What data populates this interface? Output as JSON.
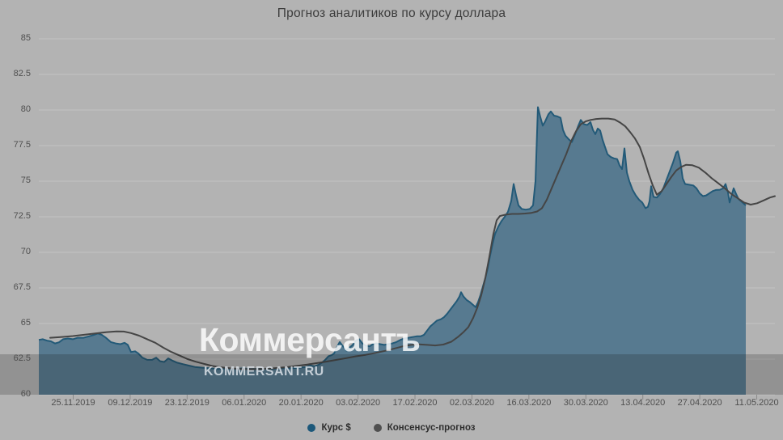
{
  "chart": {
    "title": "Прогноз аналитиков по курсу доллара"
  },
  "watermark": {
    "logo": "Коммерсантъ",
    "site": "KOMMERSANT.RU"
  },
  "colors": {
    "background": "#b3b3b3",
    "gridline": "#c3c3c3",
    "tick": "#8a8a8a",
    "axis_label": "#4f4f4f",
    "area_fill": "#54788e",
    "area_line": "#235a78",
    "consensus_line": "#454545",
    "watermark_band": "rgba(25,25,25,0.21)"
  },
  "chart_data": {
    "type": "area",
    "title": "Прогноз аналитиков по курсу доллара",
    "ylabel": "",
    "xlabel": "",
    "ylim": [
      60,
      85
    ],
    "y_ticks": [
      85,
      82.5,
      80,
      77.5,
      75,
      72.5,
      70,
      67.5,
      65,
      62.5,
      60
    ],
    "x_tick_labels": [
      "25.11.2019",
      "09.12.2019",
      "23.12.2019",
      "06.01.2020",
      "20.01.2020",
      "03.02.2020",
      "17.02.2020",
      "02.03.2020",
      "16.03.2020",
      "30.03.2020",
      "13.04.2020",
      "27.04.2020",
      "11.05.2020"
    ],
    "grid": "horizontal",
    "legend_position": "bottom",
    "x_unit": "image_px (ticks are dates two weeks apart)",
    "series": [
      {
        "name": "Курс $",
        "type": "area",
        "fill": "#54788e",
        "line": "#235a78",
        "legend_color": "#1c587a",
        "points": [
          [
            48,
            63.85
          ],
          [
            53,
            63.9
          ],
          [
            58,
            63.8
          ],
          [
            63,
            63.75
          ],
          [
            68,
            63.6
          ],
          [
            73,
            63.68
          ],
          [
            78,
            63.9
          ],
          [
            84,
            63.95
          ],
          [
            90,
            63.9
          ],
          [
            96,
            64.0
          ],
          [
            103,
            64.0
          ],
          [
            110,
            64.1
          ],
          [
            116,
            64.2
          ],
          [
            121,
            64.3
          ],
          [
            126,
            64.2
          ],
          [
            131,
            64.0
          ],
          [
            137,
            63.7
          ],
          [
            143,
            63.6
          ],
          [
            149,
            63.55
          ],
          [
            154,
            63.65
          ],
          [
            158,
            63.5
          ],
          [
            162,
            63.0
          ],
          [
            167,
            63.05
          ],
          [
            171,
            62.9
          ],
          [
            176,
            62.6
          ],
          [
            182,
            62.45
          ],
          [
            188,
            62.45
          ],
          [
            193,
            62.6
          ],
          [
            198,
            62.35
          ],
          [
            203,
            62.3
          ],
          [
            208,
            62.55
          ],
          [
            213,
            62.4
          ],
          [
            219,
            62.25
          ],
          [
            226,
            62.15
          ],
          [
            233,
            62.05
          ],
          [
            241,
            61.95
          ],
          [
            250,
            61.9
          ],
          [
            260,
            61.85
          ],
          [
            270,
            61.8
          ],
          [
            280,
            61.85
          ],
          [
            290,
            61.8
          ],
          [
            300,
            61.85
          ],
          [
            310,
            61.8
          ],
          [
            320,
            61.82
          ],
          [
            330,
            61.8
          ],
          [
            340,
            61.83
          ],
          [
            350,
            61.87
          ],
          [
            360,
            61.85
          ],
          [
            370,
            61.9
          ],
          [
            378,
            61.95
          ],
          [
            384,
            62.05
          ],
          [
            389,
            62.0
          ],
          [
            394,
            62.1
          ],
          [
            398,
            62.25
          ],
          [
            402,
            62.45
          ],
          [
            406,
            62.7
          ],
          [
            410,
            62.78
          ],
          [
            413,
            62.9
          ],
          [
            417,
            63.4
          ],
          [
            420,
            63.7
          ],
          [
            424,
            63.4
          ],
          [
            428,
            63.1
          ],
          [
            432,
            63.3
          ],
          [
            436,
            63.5
          ],
          [
            440,
            63.8
          ],
          [
            444,
            63.9
          ],
          [
            448,
            63.6
          ],
          [
            452,
            63.45
          ],
          [
            457,
            63.4
          ],
          [
            461,
            63.55
          ],
          [
            465,
            63.6
          ],
          [
            470,
            63.55
          ],
          [
            475,
            63.5
          ],
          [
            480,
            63.55
          ],
          [
            485,
            63.6
          ],
          [
            490,
            63.7
          ],
          [
            495,
            63.85
          ],
          [
            500,
            63.95
          ],
          [
            505,
            64.0
          ],
          [
            510,
            64.05
          ],
          [
            515,
            64.1
          ],
          [
            520,
            64.1
          ],
          [
            524,
            64.2
          ],
          [
            528,
            64.5
          ],
          [
            532,
            64.8
          ],
          [
            536,
            65.0
          ],
          [
            540,
            65.2
          ],
          [
            545,
            65.3
          ],
          [
            549,
            65.45
          ],
          [
            553,
            65.7
          ],
          [
            557,
            66.0
          ],
          [
            561,
            66.3
          ],
          [
            565,
            66.6
          ],
          [
            568,
            66.9
          ],
          [
            570,
            67.2
          ],
          [
            573,
            66.9
          ],
          [
            577,
            66.65
          ],
          [
            581,
            66.5
          ],
          [
            585,
            66.3
          ],
          [
            588,
            66.15
          ],
          [
            591,
            66.5
          ],
          [
            594,
            67.0
          ],
          [
            597,
            67.6
          ],
          [
            600,
            68.2
          ],
          [
            603,
            68.9
          ],
          [
            606,
            69.8
          ],
          [
            609,
            70.6
          ],
          [
            612,
            71.3
          ],
          [
            616,
            71.8
          ],
          [
            620,
            72.2
          ],
          [
            624,
            72.5
          ],
          [
            628,
            72.85
          ],
          [
            632,
            73.6
          ],
          [
            635,
            74.8
          ],
          [
            638,
            74.0
          ],
          [
            641,
            73.3
          ],
          [
            645,
            73.05
          ],
          [
            650,
            73.0
          ],
          [
            655,
            73.05
          ],
          [
            659,
            73.3
          ],
          [
            662,
            75.0
          ],
          [
            665,
            80.2
          ],
          [
            668,
            79.5
          ],
          [
            671,
            78.9
          ],
          [
            674,
            79.2
          ],
          [
            678,
            79.7
          ],
          [
            681,
            79.9
          ],
          [
            685,
            79.6
          ],
          [
            689,
            79.55
          ],
          [
            693,
            79.45
          ],
          [
            696,
            78.6
          ],
          [
            699,
            78.2
          ],
          [
            703,
            77.95
          ],
          [
            707,
            77.75
          ],
          [
            711,
            78.3
          ],
          [
            715,
            78.9
          ],
          [
            718,
            79.3
          ],
          [
            722,
            79.0
          ],
          [
            726,
            78.95
          ],
          [
            730,
            79.15
          ],
          [
            733,
            78.6
          ],
          [
            736,
            78.3
          ],
          [
            739,
            78.7
          ],
          [
            742,
            78.55
          ],
          [
            745,
            77.9
          ],
          [
            748,
            77.4
          ],
          [
            751,
            76.9
          ],
          [
            755,
            76.7
          ],
          [
            759,
            76.6
          ],
          [
            763,
            76.55
          ],
          [
            766,
            76.1
          ],
          [
            769,
            75.85
          ],
          [
            772,
            77.3
          ],
          [
            775,
            75.6
          ],
          [
            778,
            75.0
          ],
          [
            782,
            74.4
          ],
          [
            786,
            74.0
          ],
          [
            790,
            73.7
          ],
          [
            794,
            73.5
          ],
          [
            798,
            73.1
          ],
          [
            801,
            73.2
          ],
          [
            803,
            73.6
          ],
          [
            805,
            74.65
          ],
          [
            808,
            73.9
          ],
          [
            812,
            73.85
          ],
          [
            816,
            74.1
          ],
          [
            820,
            74.5
          ],
          [
            824,
            75.1
          ],
          [
            828,
            75.7
          ],
          [
            832,
            76.3
          ],
          [
            836,
            77.0
          ],
          [
            838,
            77.1
          ],
          [
            841,
            76.4
          ],
          [
            844,
            75.2
          ],
          [
            847,
            74.8
          ],
          [
            852,
            74.75
          ],
          [
            857,
            74.7
          ],
          [
            861,
            74.5
          ],
          [
            865,
            74.15
          ],
          [
            869,
            73.95
          ],
          [
            873,
            74.0
          ],
          [
            877,
            74.15
          ],
          [
            881,
            74.3
          ],
          [
            885,
            74.38
          ],
          [
            890,
            74.4
          ],
          [
            894,
            74.5
          ],
          [
            897,
            74.8
          ],
          [
            900,
            74.2
          ],
          [
            902,
            73.5
          ],
          [
            905,
            74.1
          ],
          [
            907,
            74.5
          ],
          [
            910,
            74.1
          ],
          [
            913,
            73.75
          ],
          [
            916,
            73.6
          ],
          [
            919,
            73.45
          ],
          [
            922,
            73.3
          ]
        ]
      },
      {
        "name": "Консенсус-прогноз",
        "type": "line",
        "line": "#454545",
        "legend_color": "#4f4f4f",
        "points": [
          [
            62,
            64.0
          ],
          [
            75,
            64.05
          ],
          [
            90,
            64.12
          ],
          [
            105,
            64.22
          ],
          [
            120,
            64.32
          ],
          [
            132,
            64.4
          ],
          [
            144,
            64.45
          ],
          [
            153,
            64.44
          ],
          [
            162,
            64.33
          ],
          [
            172,
            64.15
          ],
          [
            182,
            63.9
          ],
          [
            192,
            63.65
          ],
          [
            202,
            63.3
          ],
          [
            212,
            63.0
          ],
          [
            222,
            62.75
          ],
          [
            232,
            62.5
          ],
          [
            242,
            62.32
          ],
          [
            252,
            62.17
          ],
          [
            262,
            62.03
          ],
          [
            272,
            61.93
          ],
          [
            284,
            61.86
          ],
          [
            296,
            61.81
          ],
          [
            308,
            61.79
          ],
          [
            320,
            61.8
          ],
          [
            332,
            61.83
          ],
          [
            344,
            61.88
          ],
          [
            356,
            61.95
          ],
          [
            368,
            62.03
          ],
          [
            380,
            62.12
          ],
          [
            392,
            62.22
          ],
          [
            404,
            62.33
          ],
          [
            416,
            62.45
          ],
          [
            428,
            62.57
          ],
          [
            440,
            62.7
          ],
          [
            452,
            62.8
          ],
          [
            464,
            62.93
          ],
          [
            476,
            63.08
          ],
          [
            488,
            63.25
          ],
          [
            498,
            63.4
          ],
          [
            508,
            63.5
          ],
          [
            518,
            63.54
          ],
          [
            528,
            63.5
          ],
          [
            538,
            63.46
          ],
          [
            548,
            63.52
          ],
          [
            558,
            63.72
          ],
          [
            566,
            64.05
          ],
          [
            573,
            64.4
          ],
          [
            579,
            64.75
          ],
          [
            585,
            65.4
          ],
          [
            590,
            66.1
          ],
          [
            595,
            67.0
          ],
          [
            600,
            68.2
          ],
          [
            605,
            69.7
          ],
          [
            610,
            71.3
          ],
          [
            614,
            72.25
          ],
          [
            618,
            72.55
          ],
          [
            625,
            72.65
          ],
          [
            633,
            72.7
          ],
          [
            641,
            72.7
          ],
          [
            649,
            72.73
          ],
          [
            657,
            72.77
          ],
          [
            664,
            72.87
          ],
          [
            670,
            73.1
          ],
          [
            676,
            73.7
          ],
          [
            682,
            74.5
          ],
          [
            688,
            75.3
          ],
          [
            694,
            76.1
          ],
          [
            700,
            76.9
          ],
          [
            706,
            77.8
          ],
          [
            712,
            78.5
          ],
          [
            718,
            79.0
          ],
          [
            724,
            79.2
          ],
          [
            730,
            79.3
          ],
          [
            737,
            79.37
          ],
          [
            744,
            79.4
          ],
          [
            752,
            79.4
          ],
          [
            760,
            79.33
          ],
          [
            767,
            79.1
          ],
          [
            773,
            78.85
          ],
          [
            779,
            78.45
          ],
          [
            785,
            78.0
          ],
          [
            791,
            77.4
          ],
          [
            796,
            76.6
          ],
          [
            802,
            75.5
          ],
          [
            807,
            74.7
          ],
          [
            812,
            74.05
          ],
          [
            818,
            74.3
          ],
          [
            824,
            74.8
          ],
          [
            830,
            75.3
          ],
          [
            836,
            75.75
          ],
          [
            842,
            76.0
          ],
          [
            848,
            76.15
          ],
          [
            856,
            76.12
          ],
          [
            864,
            75.95
          ],
          [
            872,
            75.6
          ],
          [
            880,
            75.2
          ],
          [
            888,
            74.85
          ],
          [
            896,
            74.5
          ],
          [
            904,
            74.1
          ],
          [
            912,
            73.8
          ],
          [
            920,
            73.5
          ],
          [
            928,
            73.35
          ],
          [
            936,
            73.45
          ],
          [
            944,
            73.65
          ],
          [
            952,
            73.85
          ],
          [
            958,
            73.95
          ]
        ]
      }
    ]
  }
}
